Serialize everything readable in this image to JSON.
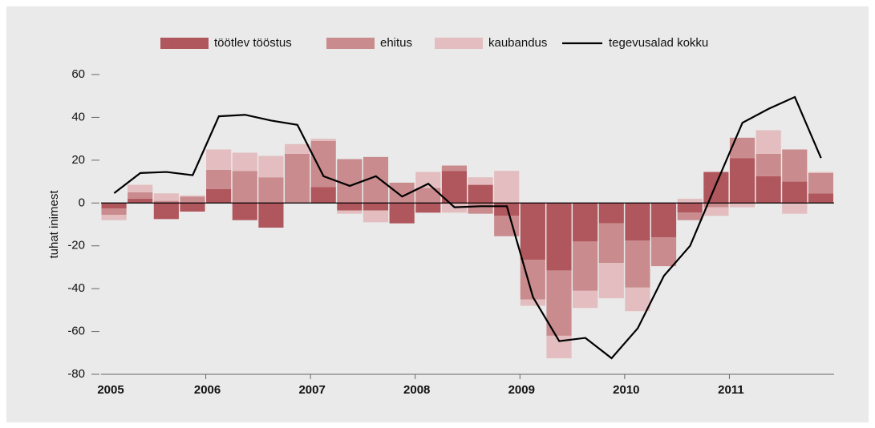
{
  "chart_data": {
    "type": "stacked_bar_line",
    "y_label": "tuhat inimest",
    "categories": [
      "2005",
      null,
      null,
      null,
      "2006",
      null,
      null,
      null,
      "2007",
      null,
      null,
      null,
      "2008",
      null,
      null,
      null,
      "2009",
      null,
      null,
      null,
      "2010",
      null,
      null,
      null,
      "2011",
      null,
      null,
      null
    ],
    "series": [
      {
        "name": "töötlev tööstus",
        "type": "bar",
        "color": "#b0565d",
        "values": [
          -2.5,
          2,
          -7.5,
          -4,
          6.5,
          -8,
          -11.5,
          0,
          7.5,
          -3.5,
          -3.5,
          -9.5,
          -4.5,
          15,
          8.5,
          -6,
          -26.5,
          -31.5,
          -18,
          -9.5,
          -17.5,
          -16,
          -4.5,
          14.5,
          21,
          12.5,
          10,
          4.5
        ]
      },
      {
        "name": "ehitus",
        "type": "bar",
        "color": "#c98b8d",
        "values": [
          -3,
          3,
          1,
          3,
          9,
          15,
          12,
          23,
          21.5,
          20.5,
          21.5,
          9.5,
          7,
          2.5,
          -5,
          -9.5,
          -18.5,
          -30.5,
          -23,
          -18.5,
          -22,
          -13.5,
          -3.5,
          -2,
          9.5,
          10.5,
          15,
          9.5
        ]
      },
      {
        "name": "kaubandus",
        "type": "bar",
        "color": "#e3bdbf",
        "values": [
          -2.5,
          3.5,
          3.5,
          0.5,
          9.5,
          8.5,
          10,
          4.5,
          1,
          -1.5,
          -5.5,
          0,
          7.5,
          -4.5,
          3.5,
          15,
          -3,
          -10.5,
          -8,
          -16.5,
          -11,
          0,
          2,
          -4,
          -2,
          11,
          -5,
          0.5
        ]
      },
      {
        "name": "tegevusalad kokku",
        "type": "line",
        "color": "#000000",
        "values": [
          4.6,
          14,
          14.5,
          13,
          40.5,
          41.2,
          38.5,
          36.5,
          12.5,
          8,
          12.5,
          3,
          9,
          -2,
          -1.5,
          -1.5,
          -44,
          -64.5,
          -63,
          -72.5,
          -58.5,
          -34,
          -20,
          9,
          37.5,
          44,
          49.5,
          21
        ]
      }
    ],
    "ylim": [
      -80,
      60
    ],
    "yticks": [
      -80,
      -60,
      -40,
      -20,
      0,
      20,
      40,
      60
    ]
  }
}
